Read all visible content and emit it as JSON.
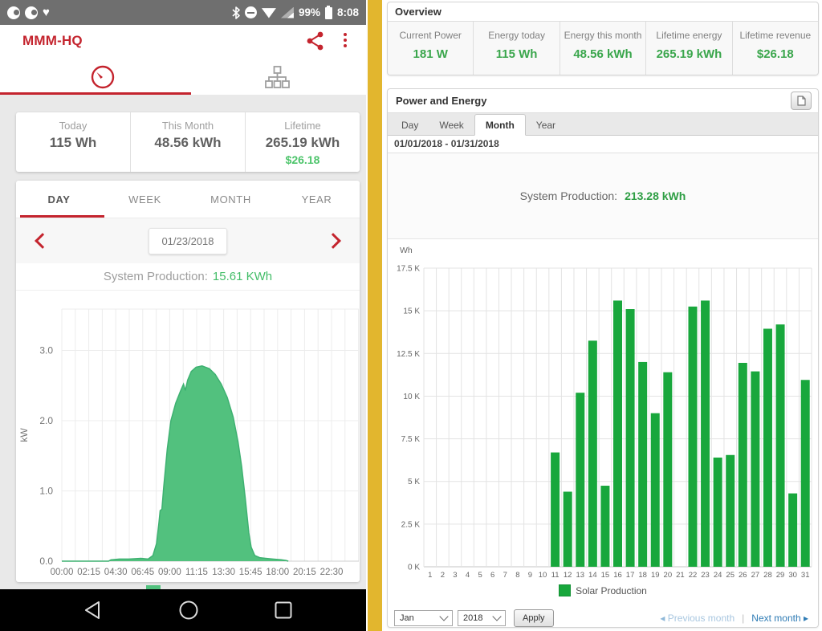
{
  "colors": {
    "accent_red": "#c4242e",
    "mobile_area_green": "#52c17e",
    "mobile_area_stroke": "#3eb171",
    "mobile_value_green": "#4cc46a",
    "desktop_value_green": "#3aa64c",
    "bar_green": "#18a73c",
    "divider_yellow": "#e2b62e",
    "grid_gray": "#ececec",
    "link_blue": "#2f7cb5",
    "link_blue_muted": "#a9c7e0"
  },
  "mobile": {
    "status_bar": {
      "battery_pct": "99%",
      "time": "8:08",
      "icons": [
        "notification-circle-icon",
        "notification-circle-icon",
        "heart-icon",
        "bluetooth-icon",
        "do-not-disturb-icon",
        "wifi-icon",
        "cellular-signal-icon",
        "battery-icon"
      ]
    },
    "app_bar": {
      "title": "MMM-HQ",
      "icons": [
        "share-icon",
        "overflow-menu-icon"
      ]
    },
    "nav_tabs": {
      "icons": [
        "gauge-icon",
        "array-icon"
      ],
      "selected_index": 0
    },
    "stats": [
      {
        "label": "Today",
        "value": "115 Wh"
      },
      {
        "label": "This Month",
        "value": "48.56 kWh"
      },
      {
        "label": "Lifetime",
        "value": "265.19 kWh",
        "sub_value": "$26.18"
      }
    ],
    "period_tabs": [
      "DAY",
      "WEEK",
      "MONTH",
      "YEAR"
    ],
    "selected_period": "DAY",
    "date": "01/23/2018",
    "production": {
      "label": "System Production:",
      "value": "15.61 KWh"
    },
    "chart_data": {
      "type": "area",
      "title": "Daily system production power curve",
      "xlabel": "",
      "ylabel": "kW",
      "x_ticks": [
        "00:00",
        "02:15",
        "04:30",
        "06:45",
        "09:00",
        "11:15",
        "13:30",
        "15:45",
        "18:00",
        "20:15",
        "22:30"
      ],
      "y_ticks": [
        {
          "v": 0,
          "label": "0.0"
        },
        {
          "v": 1,
          "label": "1.0"
        },
        {
          "v": 2,
          "label": "2.0"
        },
        {
          "v": 3,
          "label": "3.0"
        }
      ],
      "xlim_hours": [
        0,
        24.75
      ],
      "ylim": [
        0,
        3.6
      ],
      "grid": true,
      "series": [
        {
          "name": "Power (kW)",
          "points": [
            [
              0,
              0
            ],
            [
              3.9,
              0
            ],
            [
              4.1,
              0.02
            ],
            [
              4.8,
              0.03
            ],
            [
              5.6,
              0.03
            ],
            [
              6.6,
              0.04
            ],
            [
              7.2,
              0.03
            ],
            [
              7.6,
              0.08
            ],
            [
              7.9,
              0.25
            ],
            [
              8.1,
              0.55
            ],
            [
              8.2,
              0.72
            ],
            [
              8.35,
              0.74
            ],
            [
              8.5,
              1.05
            ],
            [
              8.8,
              1.6
            ],
            [
              9.1,
              2.0
            ],
            [
              9.5,
              2.25
            ],
            [
              9.9,
              2.42
            ],
            [
              10.15,
              2.52
            ],
            [
              10.3,
              2.43
            ],
            [
              10.5,
              2.58
            ],
            [
              10.8,
              2.7
            ],
            [
              11.2,
              2.76
            ],
            [
              11.7,
              2.78
            ],
            [
              12.3,
              2.74
            ],
            [
              12.8,
              2.66
            ],
            [
              13.3,
              2.52
            ],
            [
              13.8,
              2.33
            ],
            [
              14.3,
              2.05
            ],
            [
              14.7,
              1.7
            ],
            [
              15.0,
              1.35
            ],
            [
              15.3,
              0.9
            ],
            [
              15.6,
              0.4
            ],
            [
              15.8,
              0.2
            ],
            [
              16.1,
              0.08
            ],
            [
              16.5,
              0.05
            ],
            [
              17.0,
              0.04
            ],
            [
              17.6,
              0.03
            ],
            [
              18.3,
              0.02
            ],
            [
              18.7,
              0.01
            ],
            [
              18.9,
              0
            ]
          ]
        }
      ]
    },
    "nav_bar_icons": [
      "back-icon",
      "home-icon",
      "recents-icon"
    ]
  },
  "desktop": {
    "overview": {
      "title": "Overview",
      "cards": [
        {
          "label": "Current Power",
          "value": "181 W"
        },
        {
          "label": "Energy today",
          "value": "115 Wh"
        },
        {
          "label": "Energy this month",
          "value": "48.56 kWh"
        },
        {
          "label": "Lifetime energy",
          "value": "265.19 kWh"
        },
        {
          "label": "Lifetime revenue",
          "value": "$26.18"
        }
      ]
    },
    "power_energy": {
      "title": "Power and Energy",
      "header_icon": "report-icon",
      "tabs": [
        "Day",
        "Week",
        "Month",
        "Year"
      ],
      "selected_tab": "Month",
      "date_range": "01/01/2018 - 01/31/2018",
      "production": {
        "label": "System Production:",
        "value": "213.28 kWh"
      }
    },
    "chart_data": {
      "type": "bar",
      "title": "Solar production by day, January 2018",
      "xlabel": "",
      "ylabel": "Wh",
      "legend": [
        "Solar Production"
      ],
      "legend_position": "bottom",
      "grid": true,
      "categories": [
        1,
        2,
        3,
        4,
        5,
        6,
        7,
        8,
        9,
        10,
        11,
        12,
        13,
        14,
        15,
        16,
        17,
        18,
        19,
        20,
        21,
        22,
        23,
        24,
        25,
        26,
        27,
        28,
        29,
        30,
        31
      ],
      "values_wh": [
        0,
        0,
        0,
        0,
        0,
        0,
        0,
        0,
        0,
        0,
        6700,
        4400,
        10200,
        13250,
        4750,
        15600,
        15100,
        12000,
        9000,
        11400,
        0,
        15250,
        15600,
        6400,
        6550,
        11950,
        11450,
        13950,
        14200,
        4300,
        10950
      ],
      "y_ticks": [
        {
          "v": 0,
          "label": "0 K"
        },
        {
          "v": 2500,
          "label": "2.5 K"
        },
        {
          "v": 5000,
          "label": "5 K"
        },
        {
          "v": 7500,
          "label": "7.5 K"
        },
        {
          "v": 10000,
          "label": "10 K"
        },
        {
          "v": 12500,
          "label": "12.5 K"
        },
        {
          "v": 15000,
          "label": "15 K"
        },
        {
          "v": 17500,
          "label": "17.5 K"
        }
      ],
      "ylim": [
        0,
        17500
      ]
    },
    "controls": {
      "month_select": "Jan",
      "year_select": "2018",
      "apply_label": "Apply",
      "previous_label": "Previous month",
      "next_label": "Next month"
    }
  }
}
